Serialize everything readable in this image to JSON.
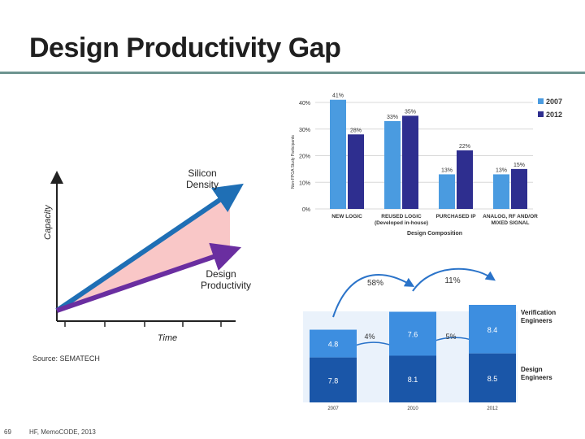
{
  "title": "Design Productivity Gap",
  "source": "Source: SEMATECH",
  "footer": {
    "page": "69",
    "text": "HF, MemoCODE, 2013"
  },
  "colors": {
    "series2007": "#4a9be0",
    "series2012": "#2e2e8f",
    "silicon": "#1f6fb5",
    "productivity": "#6a2ea0",
    "gap": "#f9c7c7",
    "verif": "#3d8ee0",
    "design": "#1a56a8"
  },
  "chart_data": [
    {
      "type": "line",
      "title": "",
      "ylabel": "Capacity",
      "xlabel": "Time",
      "series": [
        {
          "name": "Silicon Density",
          "values": [
            0,
            10
          ]
        },
        {
          "name": "Design Productivity",
          "values": [
            0,
            5
          ]
        }
      ]
    },
    {
      "type": "bar",
      "ylabel": "Non-FPGA Study Participants",
      "xlabel": "Design Composition",
      "ylim": [
        0,
        40
      ],
      "yticks": [
        "0%",
        "10%",
        "20%",
        "30%",
        "40%"
      ],
      "categories": [
        {
          "l1": "NEW LOGIC",
          "l2": ""
        },
        {
          "l1": "REUSED LOGIC",
          "l2": "(Developed in-house)"
        },
        {
          "l1": "PURCHASED IP",
          "l2": ""
        },
        {
          "l1": "ANALOG, RF AND/OR",
          "l2": "MIXED SIGNAL"
        }
      ],
      "series": [
        {
          "name": "2007",
          "values": [
            41,
            33,
            13,
            13
          ],
          "labels": [
            "41%",
            "33%",
            "13%",
            "13%"
          ]
        },
        {
          "name": "2012",
          "values": [
            28,
            35,
            22,
            15
          ],
          "labels": [
            "28%",
            "35%",
            "22%",
            "15%"
          ]
        }
      ]
    },
    {
      "type": "bar",
      "stacked": true,
      "categories": [
        "2007",
        "2010",
        "2012"
      ],
      "series": [
        {
          "name": "Design Engineers",
          "values": [
            7.8,
            8.1,
            8.5
          ],
          "labels": [
            "7.8",
            "8.1",
            "8.5"
          ]
        },
        {
          "name": "Verification Engineers",
          "values": [
            4.8,
            7.6,
            8.4
          ],
          "labels": [
            "4.8",
            "7.6",
            "8.4"
          ]
        }
      ],
      "legend": [
        {
          "l1": "Verification",
          "l2": "Engineers"
        },
        {
          "l1": "Design",
          "l2": "Engineers"
        }
      ],
      "annotations": {
        "verif_2007_2010": "58%",
        "verif_2010_2012": "11%",
        "design_2007_2010": "4%",
        "design_2010_2012": "5%"
      }
    }
  ]
}
